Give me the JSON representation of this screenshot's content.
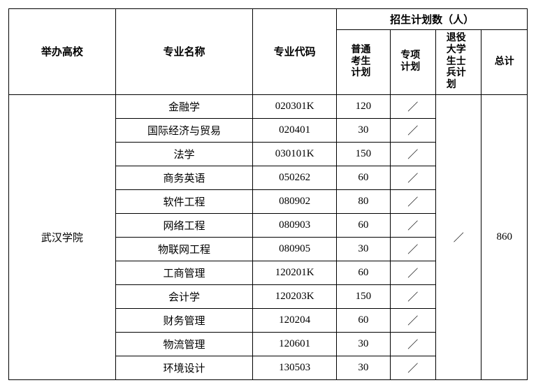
{
  "table": {
    "type": "table",
    "background_color": "#ffffff",
    "border_color": "#000000",
    "font_family": "SimSun",
    "header_fontsize": 15,
    "cell_fontsize": 15,
    "columns": {
      "school": {
        "label": "举办高校",
        "width": 140,
        "align": "center"
      },
      "major": {
        "label": "专业名称",
        "width": 180,
        "align": "center"
      },
      "code": {
        "label": "专业代码",
        "width": 110,
        "align": "center"
      },
      "plan_group": {
        "label": "招生计划数（人）"
      },
      "plan_normal": {
        "label": "普通考生计划",
        "width": 70,
        "align": "center"
      },
      "plan_special": {
        "label": "专项计划",
        "width": 60,
        "align": "center"
      },
      "plan_veteran": {
        "label": "退役大学生士兵计划",
        "width": 60,
        "align": "center"
      },
      "plan_total": {
        "label": "总计",
        "width": 60,
        "align": "center"
      }
    },
    "school_name": "武汉学院",
    "veteran_value": "／",
    "total_value": "860",
    "rows": [
      {
        "major": "金融学",
        "code": "020301K",
        "normal": "120",
        "special": "／"
      },
      {
        "major": "国际经济与贸易",
        "code": "020401",
        "normal": "30",
        "special": "／"
      },
      {
        "major": "法学",
        "code": "030101K",
        "normal": "150",
        "special": "／"
      },
      {
        "major": "商务英语",
        "code": "050262",
        "normal": "60",
        "special": "／"
      },
      {
        "major": "软件工程",
        "code": "080902",
        "normal": "80",
        "special": "／"
      },
      {
        "major": "网络工程",
        "code": "080903",
        "normal": "60",
        "special": "／"
      },
      {
        "major": "物联网工程",
        "code": "080905",
        "normal": "30",
        "special": "／"
      },
      {
        "major": "工商管理",
        "code": "120201K",
        "normal": "60",
        "special": "／"
      },
      {
        "major": "会计学",
        "code": "120203K",
        "normal": "150",
        "special": "／"
      },
      {
        "major": "财务管理",
        "code": "120204",
        "normal": "60",
        "special": "／"
      },
      {
        "major": "物流管理",
        "code": "120601",
        "normal": "30",
        "special": "／"
      },
      {
        "major": "环境设计",
        "code": "130503",
        "normal": "30",
        "special": "／"
      }
    ]
  }
}
